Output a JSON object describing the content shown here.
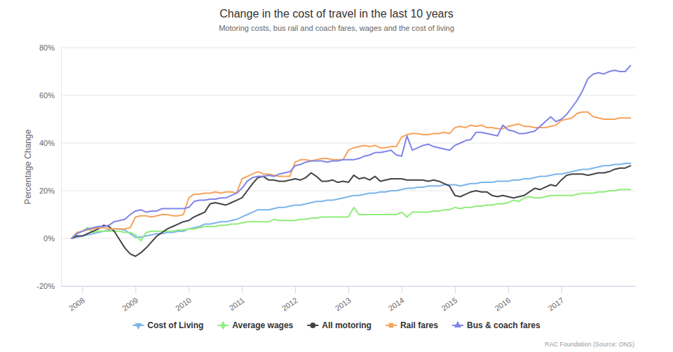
{
  "chart_data": {
    "type": "line",
    "title": "Change in the cost of travel in the last 10 years",
    "subtitle": "Motoring costs, bus rail and coach fares, wages and the cost of living",
    "y_label": "Percentage Change",
    "annotations": [
      "RAC Foundation (Source: ONS)"
    ],
    "legend": "bottom",
    "grid": true,
    "xlim": [
      2007.6,
      2018.4
    ],
    "xticks": [
      2008,
      2009,
      2010,
      2011,
      2012,
      2013,
      2014,
      2015,
      2016,
      2017
    ],
    "ylim": [
      -20,
      80
    ],
    "yticks": [
      {
        "value": -20,
        "label": "-20%"
      },
      {
        "value": 0,
        "label": "0%"
      },
      {
        "value": 20,
        "label": "20%"
      },
      {
        "value": 40,
        "label": "40%"
      },
      {
        "value": 60,
        "label": "60%"
      },
      {
        "value": 80,
        "label": "80%"
      }
    ],
    "x": [
      2007.8,
      2007.9,
      2008,
      2008.1,
      2008.2,
      2008.3,
      2008.4,
      2008.5,
      2008.6,
      2008.7,
      2008.8,
      2008.9,
      2009,
      2009.1,
      2009.2,
      2009.3,
      2009.4,
      2009.5,
      2009.6,
      2009.7,
      2009.8,
      2009.9,
      2010,
      2010.1,
      2010.2,
      2010.3,
      2010.4,
      2010.5,
      2010.6,
      2010.7,
      2010.8,
      2010.9,
      2011,
      2011.1,
      2011.2,
      2011.3,
      2011.4,
      2011.5,
      2011.6,
      2011.7,
      2011.8,
      2011.9,
      2012,
      2012.1,
      2012.2,
      2012.3,
      2012.4,
      2012.5,
      2012.6,
      2012.7,
      2012.8,
      2012.9,
      2013,
      2013.1,
      2013.2,
      2013.3,
      2013.4,
      2013.5,
      2013.6,
      2013.7,
      2013.8,
      2013.9,
      2014,
      2014.1,
      2014.2,
      2014.3,
      2014.4,
      2014.5,
      2014.6,
      2014.7,
      2014.8,
      2014.9,
      2015,
      2015.1,
      2015.2,
      2015.3,
      2015.4,
      2015.5,
      2015.6,
      2015.7,
      2015.8,
      2015.9,
      2016,
      2016.1,
      2016.2,
      2016.3,
      2016.4,
      2016.5,
      2016.6,
      2016.7,
      2016.8,
      2016.9,
      2017,
      2017.1,
      2017.2,
      2017.3,
      2017.4,
      2017.5,
      2017.6,
      2017.7,
      2017.8,
      2017.9,
      2018,
      2018.1,
      2018.2,
      2018.3
    ],
    "series": [
      {
        "name": "Cost of Living",
        "color": "#7cb5ec",
        "marker": "triangle-down",
        "values": [
          0,
          0.5,
          1,
          1.5,
          2,
          2.5,
          3,
          3.5,
          4,
          4,
          3.5,
          2,
          0.5,
          0.5,
          1,
          1.5,
          2,
          2,
          2.5,
          2.5,
          3,
          3,
          4,
          4.5,
          5,
          6,
          6,
          6.5,
          7,
          7,
          7.5,
          8,
          9,
          10,
          11,
          12,
          12,
          12,
          12.5,
          13,
          13,
          13.5,
          14,
          14,
          14.5,
          15,
          15.5,
          15.5,
          16,
          16,
          16.5,
          17,
          17.5,
          18,
          18,
          18.5,
          19,
          19,
          19.5,
          19.5,
          20,
          20,
          20.5,
          21,
          21,
          21.5,
          21.5,
          22,
          22,
          22,
          22.5,
          22.5,
          22.5,
          22,
          22.5,
          23,
          23,
          23.5,
          23.5,
          23.5,
          24,
          24,
          24,
          24.5,
          24.5,
          25,
          25,
          25.5,
          26,
          26,
          26.5,
          27,
          27,
          27.5,
          28,
          28.5,
          29,
          29,
          29.5,
          30,
          30.5,
          30.5,
          31,
          31,
          31.5,
          31.5
        ]
      },
      {
        "name": "Average wages",
        "color": "#90ed7d",
        "marker": "diamond",
        "values": [
          0,
          2,
          3,
          4.5,
          2.5,
          3,
          3,
          3,
          3,
          3,
          2.5,
          2.5,
          1.5,
          -1,
          2.5,
          3,
          3,
          3,
          3,
          3,
          3.5,
          3.5,
          4,
          4,
          4.5,
          5,
          5,
          5,
          5.5,
          5.5,
          6,
          6,
          6.5,
          7,
          7,
          7,
          7,
          7,
          8,
          7.5,
          7.5,
          7.5,
          7.5,
          8,
          8,
          8.5,
          8.5,
          9,
          9,
          9,
          9,
          9,
          9,
          13,
          10,
          10,
          10,
          10,
          10,
          10,
          10,
          10,
          11,
          9,
          11,
          11,
          11,
          11,
          11.5,
          11.5,
          12,
          12,
          13,
          12.5,
          13,
          13,
          13.5,
          13.5,
          14,
          14,
          14.5,
          14.5,
          15,
          16,
          15.5,
          17,
          17.5,
          17,
          17,
          17.5,
          18,
          18,
          18,
          18,
          18,
          18.5,
          19,
          19,
          19,
          19.5,
          19.5,
          20,
          20,
          20.5,
          20.5,
          20.5
        ]
      },
      {
        "name": "All motoring",
        "color": "#434348",
        "marker": "circle",
        "values": [
          0,
          1,
          1,
          2,
          3,
          4,
          5.5,
          5,
          3,
          -0.5,
          -4,
          -6.5,
          -7.5,
          -6,
          -4,
          -1.5,
          1,
          2.5,
          4,
          5,
          6,
          7,
          7.5,
          9,
          10,
          11,
          14.5,
          15,
          14.5,
          14,
          15,
          16,
          17,
          20,
          23,
          25.5,
          26,
          24.5,
          24.5,
          24,
          24,
          24.5,
          25,
          24.5,
          25.5,
          27.5,
          26,
          24,
          24,
          24.5,
          23.5,
          24,
          23.5,
          26.5,
          25,
          25.5,
          24.5,
          26,
          24,
          24.5,
          25,
          25,
          25,
          24.5,
          24.5,
          24.5,
          24.5,
          24,
          24.5,
          24,
          23,
          22,
          18,
          17.5,
          18.5,
          19.5,
          20,
          19.5,
          19.5,
          18,
          17.5,
          18,
          17.5,
          17,
          17.5,
          18,
          19.5,
          21,
          20.5,
          21.5,
          22.5,
          22,
          24.5,
          26.5,
          27,
          27,
          27,
          26.5,
          27,
          27.5,
          27.5,
          28,
          29,
          29.5,
          29.5,
          30.5
        ]
      },
      {
        "name": "Rail fares",
        "color": "#f7a35c",
        "marker": "square",
        "values": [
          0,
          2.5,
          3,
          3.5,
          4,
          4.5,
          4.5,
          4,
          4,
          4,
          4,
          4.5,
          9,
          9.5,
          9.5,
          9,
          9.5,
          10,
          10,
          9.5,
          9.5,
          10,
          17,
          18.5,
          18.5,
          19,
          19,
          19.5,
          19,
          19.5,
          19.5,
          19,
          25,
          26,
          27,
          28,
          27,
          27,
          26.5,
          26,
          26,
          26,
          32,
          33,
          33,
          32.5,
          33,
          33.5,
          33.5,
          33,
          33,
          33,
          37,
          38,
          38.5,
          39,
          38.5,
          39,
          38,
          38,
          38.5,
          38.5,
          42.5,
          43.5,
          44,
          44,
          43.5,
          43.5,
          44,
          44,
          44.5,
          44,
          46.5,
          47,
          46.5,
          47.5,
          47,
          47.5,
          46.5,
          46.5,
          46,
          46,
          47,
          47.5,
          48,
          47,
          47,
          46.5,
          46.5,
          46.5,
          47,
          47.5,
          49.5,
          50,
          50.5,
          52.5,
          53,
          53,
          51,
          50.5,
          50,
          50,
          50,
          50.5,
          50.5,
          50.5
        ]
      },
      {
        "name": "Bus & coach fares",
        "color": "#8085e9",
        "marker": "triangle",
        "values": [
          0,
          2,
          3,
          4,
          4.5,
          5,
          5,
          5.5,
          7,
          7.5,
          8,
          10,
          11.5,
          12,
          11,
          11.5,
          11.5,
          12.5,
          12.5,
          12.5,
          12.5,
          12.5,
          13,
          15.5,
          16,
          16,
          16.5,
          16.5,
          17,
          17,
          18,
          19,
          21,
          24,
          25.5,
          26,
          26,
          26.5,
          26,
          27,
          27.5,
          28,
          30.5,
          31,
          32,
          32.5,
          32.5,
          32.5,
          32,
          32.5,
          32.5,
          33,
          33,
          33,
          33.5,
          34.5,
          35,
          36,
          36,
          36.5,
          37,
          35,
          34.5,
          43,
          37,
          38,
          39,
          39.5,
          38.5,
          38,
          37.5,
          37,
          39,
          40,
          41,
          41.5,
          44.5,
          44.5,
          44,
          43.5,
          43,
          47.5,
          45.5,
          45,
          44,
          44,
          44.5,
          45,
          47,
          49,
          51,
          49,
          50,
          52,
          55,
          58,
          62,
          67,
          69,
          69.5,
          69,
          70,
          70.5,
          70,
          70,
          72.5
        ]
      }
    ]
  }
}
